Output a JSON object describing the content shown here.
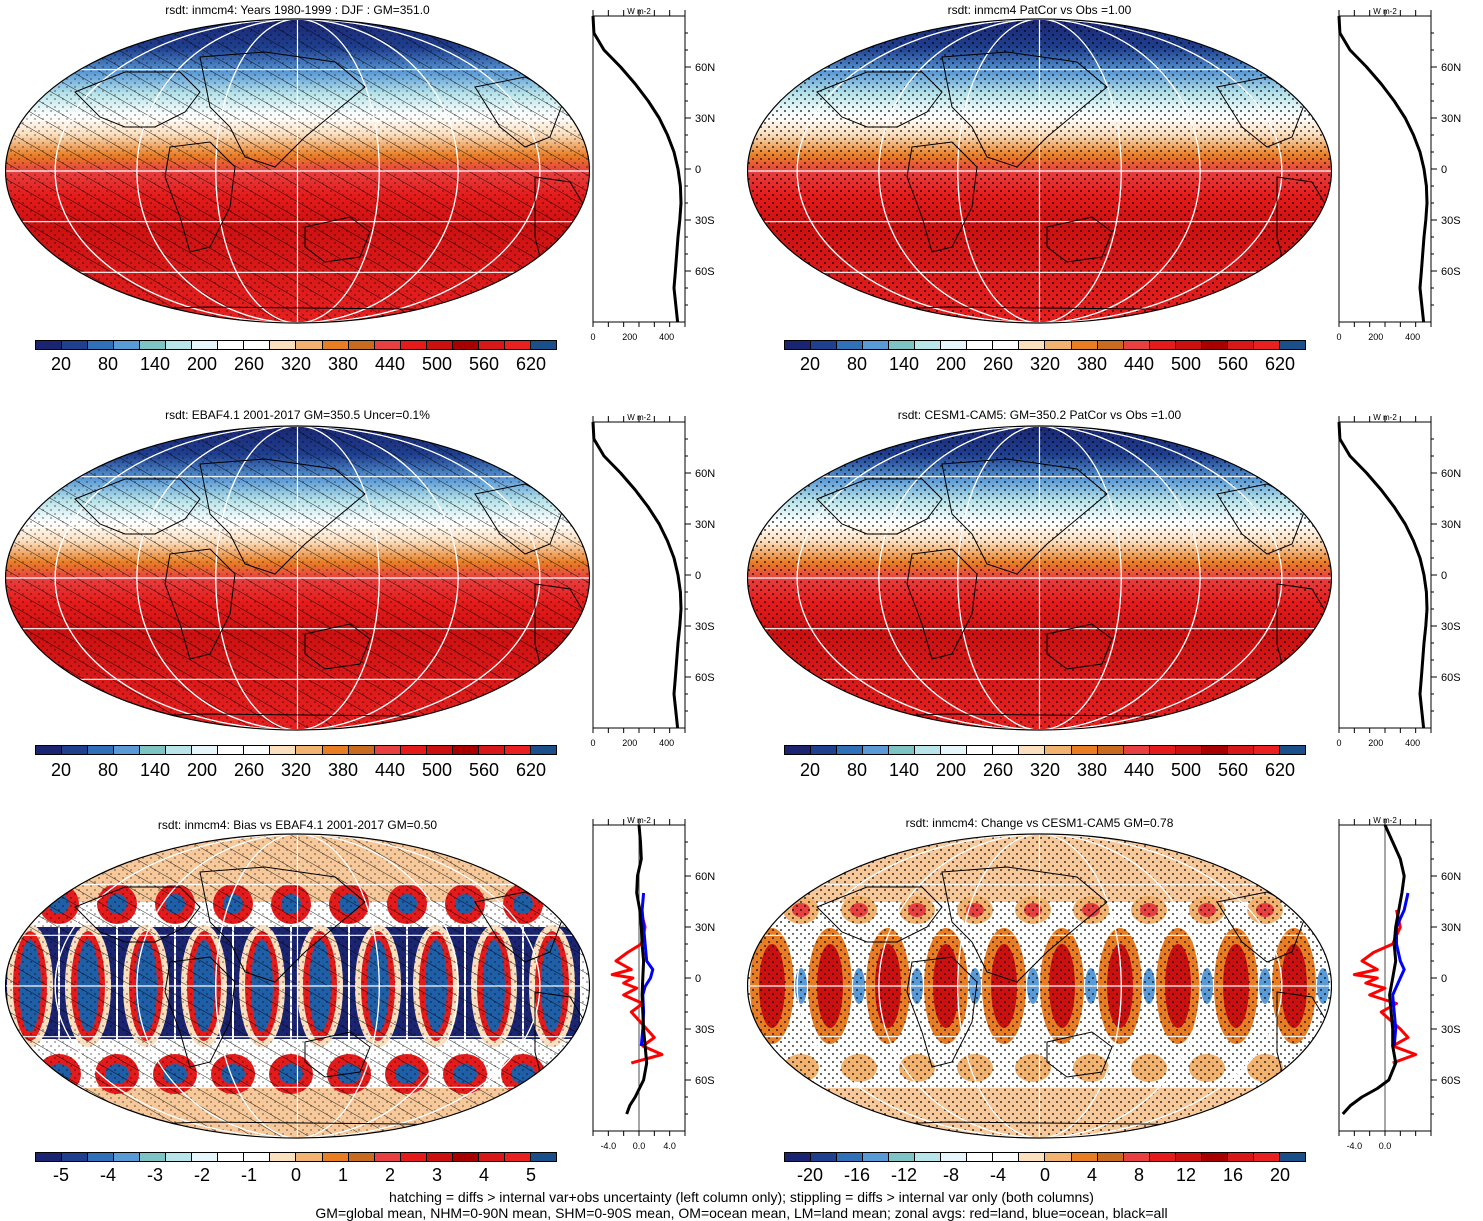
{
  "figure": {
    "footer_line1": "hatching = diffs > internal var+obs uncertainty (left column only); stippling = diffs > internal var only (both columns)",
    "footer_line2": "GM=global mean, NHM=0-90N mean, SHM=0-90S mean, OM=ocean mean, LM=land mean; zonal avgs: red=land, blue=ocean, black=all"
  },
  "colors": {
    "abs_scale": [
      "#1a2470",
      "#1f3f8f",
      "#2f70b8",
      "#5a9ad6",
      "#7fc4c4",
      "#b8e4ea",
      "#e6f6fa",
      "#ffffff",
      "#ffffff",
      "#fbe0c0",
      "#f2b270",
      "#e87d24",
      "#c86a1f",
      "#e84040",
      "#e51b1b",
      "#cc1010",
      "#a80000",
      "#d81818",
      "#e82020",
      "#1a4f8a"
    ],
    "diff_scale": [
      "#1a2470",
      "#1f3f8f",
      "#2f70b8",
      "#5a9ad6",
      "#7fc4c4",
      "#b8e4ea",
      "#e6f6fa",
      "#ffffff",
      "#ffffff",
      "#fbe0c0",
      "#f2b270",
      "#e87d24",
      "#c86a1f",
      "#e84040",
      "#e51b1b",
      "#cc1010",
      "#a80000",
      "#d81818",
      "#e82020",
      "#1a4f8a"
    ]
  },
  "chart_data": [
    {
      "type": "heatmap",
      "panel": "top-left",
      "title": "rsdt: inmcm4: Years 1980-1999 : DJF : GM=351.0",
      "colorbar_ticks": [
        "20",
        "80",
        "140",
        "200",
        "260",
        "320",
        "380",
        "440",
        "500",
        "560",
        "620"
      ],
      "overlay": "hatching",
      "zonal": {
        "type": "line",
        "xlabel": "W m-2",
        "xticks": [
          "0",
          "200",
          "400"
        ],
        "xlim": [
          0,
          500
        ],
        "yticks": [
          "60N",
          "30N",
          "0",
          "30S",
          "60S"
        ],
        "series": [
          {
            "name": "all",
            "color": "#000000",
            "lat": [
              90,
              80,
              70,
              60,
              50,
              40,
              30,
              20,
              10,
              0,
              -10,
              -20,
              -30,
              -40,
              -50,
              -60,
              -70,
              -80,
              -90
            ],
            "values": [
              0,
              5,
              60,
              150,
              230,
              300,
              360,
              405,
              440,
              462,
              475,
              478,
              472,
              462,
              455,
              448,
              440,
              450,
              460
            ]
          }
        ]
      }
    },
    {
      "type": "heatmap",
      "panel": "top-right",
      "title": "rsdt: inmcm4 PatCor vs Obs =1.00",
      "colorbar_ticks": [
        "20",
        "80",
        "140",
        "200",
        "260",
        "320",
        "380",
        "440",
        "500",
        "560",
        "620"
      ],
      "overlay": "stippling",
      "zonal": {
        "type": "line",
        "xlabel": "W m-2",
        "xticks": [
          "0",
          "200",
          "400"
        ],
        "xlim": [
          0,
          500
        ],
        "yticks": [
          "60N",
          "30N",
          "0",
          "30S",
          "60S"
        ],
        "series": [
          {
            "name": "all",
            "color": "#000000",
            "lat": [
              90,
              80,
              70,
              60,
              50,
              40,
              30,
              20,
              10,
              0,
              -10,
              -20,
              -30,
              -40,
              -50,
              -60,
              -70,
              -80,
              -90
            ],
            "values": [
              0,
              5,
              60,
              150,
              230,
              300,
              360,
              405,
              440,
              462,
              475,
              478,
              472,
              462,
              455,
              448,
              440,
              450,
              460
            ]
          }
        ]
      }
    },
    {
      "type": "heatmap",
      "panel": "middle-left",
      "title": "rsdt: EBAF4.1 2001-2017 GM=350.5 Uncer=0.1%",
      "colorbar_ticks": [
        "20",
        "80",
        "140",
        "200",
        "260",
        "320",
        "380",
        "440",
        "500",
        "560",
        "620"
      ],
      "overlay": "hatching",
      "zonal": {
        "type": "line",
        "xlabel": "W m-2",
        "xticks": [
          "0",
          "200",
          "400"
        ],
        "xlim": [
          0,
          500
        ],
        "yticks": [
          "60N",
          "30N",
          "0",
          "30S",
          "60S"
        ],
        "series": [
          {
            "name": "all",
            "color": "#000000",
            "lat": [
              90,
              80,
              70,
              60,
              50,
              40,
              30,
              20,
              10,
              0,
              -10,
              -20,
              -30,
              -40,
              -50,
              -60,
              -70,
              -80,
              -90
            ],
            "values": [
              0,
              5,
              60,
              150,
              230,
              300,
              360,
              405,
              440,
              462,
              475,
              478,
              472,
              462,
              455,
              448,
              440,
              450,
              460
            ]
          }
        ]
      }
    },
    {
      "type": "heatmap",
      "panel": "middle-right",
      "title": "rsdt: CESM1-CAM5: GM=350.2 PatCor vs Obs =1.00",
      "colorbar_ticks": [
        "20",
        "80",
        "140",
        "200",
        "260",
        "320",
        "380",
        "440",
        "500",
        "560",
        "620"
      ],
      "overlay": "stippling",
      "zonal": {
        "type": "line",
        "xlabel": "W m-2",
        "xticks": [
          "0",
          "200",
          "400"
        ],
        "xlim": [
          0,
          500
        ],
        "yticks": [
          "60N",
          "30N",
          "0",
          "30S",
          "60S"
        ],
        "series": [
          {
            "name": "all",
            "color": "#000000",
            "lat": [
              90,
              80,
              70,
              60,
              50,
              40,
              30,
              20,
              10,
              0,
              -10,
              -20,
              -30,
              -40,
              -50,
              -60,
              -70,
              -80,
              -90
            ],
            "values": [
              0,
              5,
              60,
              150,
              230,
              300,
              360,
              405,
              440,
              462,
              475,
              478,
              472,
              462,
              455,
              448,
              440,
              450,
              460
            ]
          }
        ]
      }
    },
    {
      "type": "heatmap",
      "panel": "bottom-left",
      "title": "rsdt: inmcm4: Bias vs EBAF4.1 2001-2017 GM=0.50",
      "colorbar_ticks": [
        "-5",
        "-4",
        "-3",
        "-2",
        "-1",
        "0",
        "1",
        "2",
        "3",
        "4",
        "5"
      ],
      "overlay": "hatching",
      "zonal": {
        "type": "line",
        "xlabel": "W m-2",
        "xticks": [
          "-4.0",
          "0.0",
          "4.0"
        ],
        "xlim": [
          -6,
          6
        ],
        "yticks": [
          "60N",
          "30N",
          "0",
          "30S",
          "60S"
        ],
        "series": [
          {
            "name": "land",
            "color": "#ff0000",
            "lat": [
              40,
              30,
              20,
              15,
              10,
              5,
              2,
              0,
              -3,
              -6,
              -10,
              -15,
              -20,
              -30,
              -35,
              -40,
              -45,
              -50
            ],
            "values": [
              0.2,
              0.8,
              0.3,
              -1.5,
              -3.0,
              -1.0,
              -3.5,
              -0.8,
              -2.0,
              -0.3,
              -2.0,
              0.5,
              -1.0,
              1.0,
              2.0,
              0.5,
              3.0,
              -1.0
            ]
          },
          {
            "name": "ocean",
            "color": "#0000ff",
            "lat": [
              50,
              40,
              30,
              20,
              10,
              5,
              0,
              -5,
              -10,
              -20,
              -30,
              -40
            ],
            "values": [
              0.6,
              0.4,
              0.6,
              0.8,
              1.0,
              1.8,
              1.5,
              0.8,
              0.5,
              0.6,
              0.5,
              0.3
            ]
          },
          {
            "name": "all",
            "color": "#000000",
            "lat": [
              90,
              80,
              70,
              60,
              50,
              40,
              30,
              20,
              10,
              0,
              -10,
              -20,
              -30,
              -40,
              -50,
              -60,
              -70,
              -75,
              -80
            ],
            "values": [
              0.0,
              0.2,
              0.3,
              -0.2,
              -0.3,
              0.1,
              0.3,
              0.4,
              0.6,
              0.5,
              0.4,
              0.5,
              0.6,
              0.8,
              1.0,
              0.6,
              -0.5,
              -1.2,
              -1.6
            ]
          }
        ]
      }
    },
    {
      "type": "heatmap",
      "panel": "bottom-right",
      "title": "rsdt: inmcm4: Change vs CESM1-CAM5 GM=0.78",
      "colorbar_ticks": [
        "-20",
        "-16",
        "-12",
        "-8",
        "-4",
        "0",
        "4",
        "8",
        "12",
        "16",
        "20"
      ],
      "overlay": "stippling",
      "zonal": {
        "type": "line",
        "xlabel": "W m-2",
        "xticks": [
          "-4.0",
          "0.0"
        ],
        "xlim": [
          -6,
          6
        ],
        "yticks": [
          "60N",
          "30N",
          "0",
          "30S",
          "60S"
        ],
        "series": [
          {
            "name": "land",
            "color": "#ff0000",
            "lat": [
              40,
              30,
              20,
              15,
              10,
              5,
              2,
              0,
              -3,
              -6,
              -10,
              -15,
              -20,
              -30,
              -35,
              -40,
              -45,
              -50
            ],
            "values": [
              1.5,
              2.0,
              1.0,
              -1.5,
              -3.0,
              -1.0,
              -4.0,
              -1.0,
              -2.5,
              0.0,
              -2.0,
              1.5,
              -0.5,
              2.0,
              3.0,
              1.0,
              4.0,
              1.0
            ]
          },
          {
            "name": "ocean",
            "color": "#0000ff",
            "lat": [
              50,
              40,
              30,
              20,
              10,
              5,
              0,
              -5,
              -10,
              -20,
              -30,
              -40
            ],
            "values": [
              3.0,
              2.5,
              1.5,
              1.5,
              2.0,
              2.5,
              2.0,
              1.5,
              1.0,
              1.2,
              1.4,
              1.2
            ]
          },
          {
            "name": "all",
            "color": "#000000",
            "lat": [
              90,
              80,
              70,
              60,
              50,
              40,
              30,
              20,
              10,
              0,
              -10,
              -20,
              -30,
              -40,
              -50,
              -60,
              -65,
              -70,
              -75,
              -80
            ],
            "values": [
              0.0,
              1.0,
              2.0,
              2.5,
              2.2,
              1.8,
              1.4,
              1.2,
              1.4,
              1.0,
              0.6,
              0.8,
              1.0,
              1.0,
              1.4,
              0.5,
              -1.0,
              -3.0,
              -4.5,
              -5.5
            ]
          }
        ]
      }
    }
  ]
}
